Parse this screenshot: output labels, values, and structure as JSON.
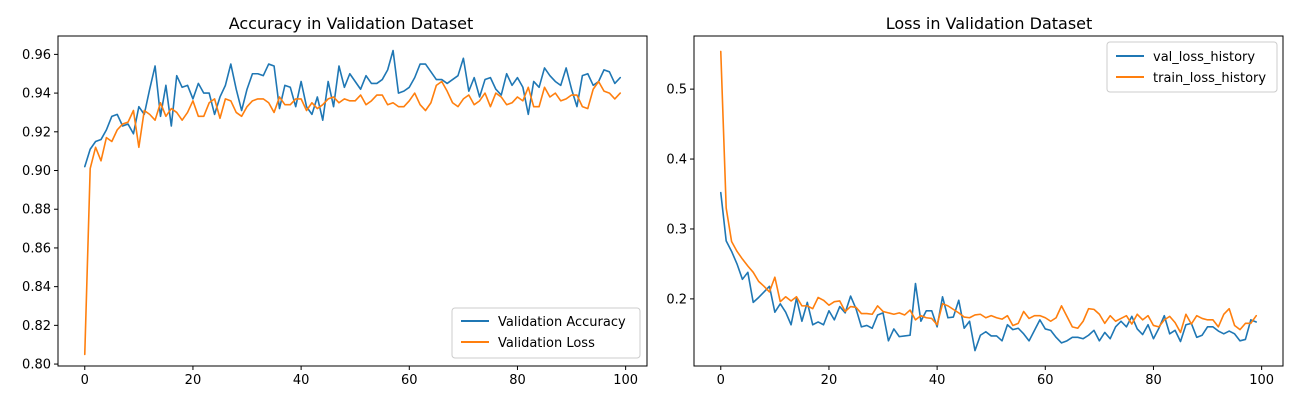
{
  "chart_data": [
    {
      "type": "line",
      "title": "Accuracy in Validation Dataset",
      "xlabel": "",
      "ylabel": "",
      "xlim": [
        -4.95,
        103.95
      ],
      "ylim": [
        0.799,
        0.9695
      ],
      "xticks": [
        0,
        20,
        40,
        60,
        80,
        100
      ],
      "yticks": [
        0.8,
        0.82,
        0.84,
        0.86,
        0.88,
        0.9,
        0.92,
        0.94,
        0.96
      ],
      "ytick_labels": [
        "0.80",
        "0.82",
        "0.84",
        "0.86",
        "0.88",
        "0.90",
        "0.92",
        "0.94",
        "0.96"
      ],
      "grid": false,
      "legend_position": "lower-right",
      "series": [
        {
          "name": "Validation Accuracy",
          "color": "#1f77b4",
          "x_start": 0,
          "values": [
            0.902,
            0.911,
            0.915,
            0.916,
            0.921,
            0.928,
            0.929,
            0.923,
            0.924,
            0.919,
            0.933,
            0.929,
            0.942,
            0.954,
            0.928,
            0.944,
            0.923,
            0.949,
            0.943,
            0.944,
            0.937,
            0.945,
            0.94,
            0.94,
            0.929,
            0.938,
            0.944,
            0.955,
            0.942,
            0.931,
            0.942,
            0.95,
            0.95,
            0.949,
            0.955,
            0.954,
            0.932,
            0.944,
            0.943,
            0.933,
            0.946,
            0.933,
            0.929,
            0.938,
            0.926,
            0.946,
            0.933,
            0.954,
            0.943,
            0.95,
            0.946,
            0.942,
            0.949,
            0.945,
            0.945,
            0.947,
            0.952,
            0.962,
            0.94,
            0.941,
            0.943,
            0.948,
            0.955,
            0.955,
            0.951,
            0.947,
            0.947,
            0.945,
            0.947,
            0.949,
            0.958,
            0.941,
            0.948,
            0.938,
            0.947,
            0.948,
            0.942,
            0.939,
            0.95,
            0.944,
            0.948,
            0.943,
            0.929,
            0.946,
            0.943,
            0.953,
            0.949,
            0.946,
            0.944,
            0.953,
            0.942,
            0.933,
            0.949,
            0.95,
            0.944,
            0.946,
            0.952,
            0.951,
            0.945,
            0.948
          ]
        },
        {
          "name": "Validation Loss",
          "color": "#ff7f0e",
          "x_start": 0,
          "values": [
            0.805,
            0.901,
            0.912,
            0.905,
            0.917,
            0.915,
            0.921,
            0.924,
            0.925,
            0.931,
            0.912,
            0.931,
            0.929,
            0.926,
            0.935,
            0.928,
            0.932,
            0.93,
            0.926,
            0.93,
            0.936,
            0.928,
            0.928,
            0.935,
            0.937,
            0.927,
            0.937,
            0.936,
            0.93,
            0.928,
            0.933,
            0.936,
            0.937,
            0.937,
            0.935,
            0.93,
            0.938,
            0.934,
            0.934,
            0.937,
            0.937,
            0.931,
            0.935,
            0.932,
            0.934,
            0.937,
            0.938,
            0.935,
            0.937,
            0.936,
            0.936,
            0.939,
            0.934,
            0.936,
            0.939,
            0.939,
            0.934,
            0.935,
            0.933,
            0.933,
            0.936,
            0.94,
            0.934,
            0.931,
            0.935,
            0.944,
            0.946,
            0.941,
            0.935,
            0.933,
            0.937,
            0.939,
            0.934,
            0.936,
            0.94,
            0.933,
            0.94,
            0.938,
            0.934,
            0.935,
            0.938,
            0.936,
            0.943,
            0.933,
            0.933,
            0.943,
            0.938,
            0.94,
            0.936,
            0.937,
            0.939,
            0.939,
            0.933,
            0.932,
            0.942,
            0.946,
            0.941,
            0.94,
            0.937,
            0.94
          ]
        }
      ]
    },
    {
      "type": "line",
      "title": "Loss in Validation Dataset",
      "xlabel": "",
      "ylabel": "",
      "xlim": [
        -4.95,
        103.95
      ],
      "ylim": [
        0.104,
        0.576
      ],
      "xticks": [
        0,
        20,
        40,
        60,
        80,
        100
      ],
      "yticks": [
        0.2,
        0.3,
        0.4,
        0.5
      ],
      "ytick_labels": [
        "0.2",
        "0.3",
        "0.4",
        "0.5"
      ],
      "grid": false,
      "legend_position": "upper-right",
      "series": [
        {
          "name": "val_loss_history",
          "color": "#1f77b4",
          "x_start": 0,
          "values": [
            0.352,
            0.283,
            0.268,
            0.25,
            0.228,
            0.238,
            0.195,
            0.202,
            0.21,
            0.218,
            0.181,
            0.193,
            0.181,
            0.163,
            0.201,
            0.168,
            0.195,
            0.163,
            0.167,
            0.163,
            0.183,
            0.17,
            0.189,
            0.18,
            0.204,
            0.186,
            0.16,
            0.162,
            0.158,
            0.177,
            0.18,
            0.14,
            0.157,
            0.146,
            0.147,
            0.148,
            0.222,
            0.168,
            0.183,
            0.183,
            0.16,
            0.203,
            0.173,
            0.174,
            0.198,
            0.158,
            0.168,
            0.126,
            0.148,
            0.153,
            0.147,
            0.147,
            0.14,
            0.163,
            0.156,
            0.158,
            0.15,
            0.14,
            0.155,
            0.17,
            0.157,
            0.155,
            0.145,
            0.137,
            0.14,
            0.145,
            0.145,
            0.143,
            0.148,
            0.155,
            0.14,
            0.152,
            0.143,
            0.16,
            0.168,
            0.16,
            0.175,
            0.157,
            0.149,
            0.163,
            0.143,
            0.158,
            0.176,
            0.15,
            0.155,
            0.139,
            0.163,
            0.165,
            0.145,
            0.148,
            0.16,
            0.16,
            0.154,
            0.15,
            0.154,
            0.15,
            0.14,
            0.142,
            0.17,
            0.167
          ]
        },
        {
          "name": "train_loss_history",
          "color": "#ff7f0e",
          "x_start": 0,
          "values": [
            0.554,
            0.33,
            0.282,
            0.268,
            0.257,
            0.247,
            0.238,
            0.225,
            0.218,
            0.21,
            0.231,
            0.196,
            0.203,
            0.197,
            0.203,
            0.19,
            0.19,
            0.186,
            0.202,
            0.198,
            0.191,
            0.196,
            0.197,
            0.182,
            0.189,
            0.188,
            0.179,
            0.179,
            0.178,
            0.19,
            0.182,
            0.18,
            0.178,
            0.18,
            0.177,
            0.184,
            0.17,
            0.176,
            0.173,
            0.172,
            0.163,
            0.193,
            0.19,
            0.185,
            0.18,
            0.174,
            0.173,
            0.177,
            0.178,
            0.173,
            0.176,
            0.173,
            0.171,
            0.176,
            0.162,
            0.165,
            0.182,
            0.172,
            0.176,
            0.176,
            0.173,
            0.168,
            0.173,
            0.19,
            0.175,
            0.16,
            0.158,
            0.168,
            0.186,
            0.185,
            0.178,
            0.165,
            0.176,
            0.168,
            0.172,
            0.176,
            0.164,
            0.178,
            0.17,
            0.176,
            0.162,
            0.16,
            0.17,
            0.175,
            0.166,
            0.152,
            0.178,
            0.164,
            0.176,
            0.172,
            0.17,
            0.17,
            0.16,
            0.178,
            0.186,
            0.162,
            0.156,
            0.165,
            0.165,
            0.176
          ]
        }
      ]
    }
  ]
}
